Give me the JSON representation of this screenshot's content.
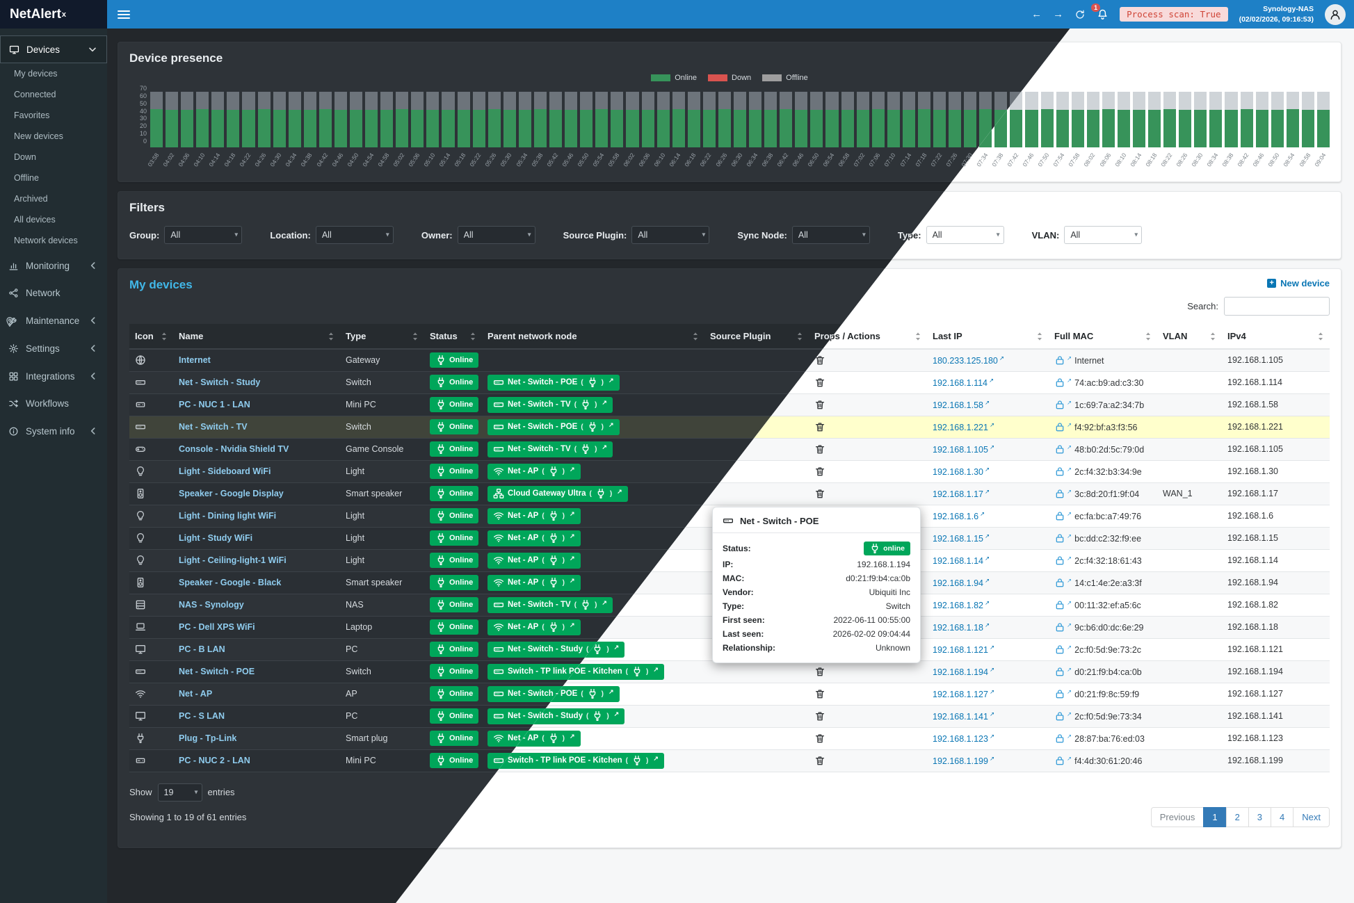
{
  "brand": {
    "name": "NetAlert",
    "sup": "x"
  },
  "topbar": {
    "notification_count": "1",
    "process_scan": "Process scan: True",
    "nas_name": "Synology-NAS",
    "nas_time": "(02/02/2026, 09:16:53)"
  },
  "colors": {
    "header_blue": "#1e80c6",
    "badge_green": "#00a65a",
    "alert_red": "#d9534f",
    "highlight_yellow": "#ffffcc"
  },
  "sidebar": {
    "sections": [
      {
        "label": "Devices",
        "icon": "desktop",
        "chevron": "down",
        "active": true
      },
      {
        "label": "Monitoring",
        "icon": "chart",
        "chevron": "left",
        "active": false
      },
      {
        "label": "Network",
        "icon": "share",
        "chevron": null,
        "active": false
      },
      {
        "label": "Maintenance",
        "icon": "wrench",
        "chevron": "left",
        "active": false
      },
      {
        "label": "Settings",
        "icon": "gear",
        "chevron": "left",
        "active": false
      },
      {
        "label": "Integrations",
        "icon": "grid",
        "chevron": "left",
        "active": false
      },
      {
        "label": "Workflows",
        "icon": "shuffle",
        "chevron": null,
        "active": false
      },
      {
        "label": "System info",
        "icon": "info",
        "chevron": "left",
        "active": false
      }
    ],
    "devices_submenu": [
      "My devices",
      "Connected",
      "Favorites",
      "New devices",
      "Down",
      "Offline",
      "Archived",
      "All devices",
      "Network devices"
    ]
  },
  "chart_data": {
    "type": "bar",
    "stacked": true,
    "title": "Device presence",
    "legend": [
      {
        "label": "Online",
        "color": "#37935a"
      },
      {
        "label": "Down",
        "color": "#d9534f"
      },
      {
        "label": "Offline",
        "color": "#9e9e9e"
      }
    ],
    "ylim": [
      0,
      70
    ],
    "yticks": [
      70,
      60,
      50,
      40,
      30,
      20,
      10,
      0
    ],
    "x": [
      "03:58",
      "04:02",
      "04:06",
      "04:10",
      "04:14",
      "04:18",
      "04:22",
      "04:26",
      "04:30",
      "04:34",
      "04:38",
      "04:42",
      "04:46",
      "04:50",
      "04:54",
      "04:58",
      "05:02",
      "05:06",
      "05:10",
      "05:14",
      "05:18",
      "05:22",
      "05:26",
      "05:30",
      "05:34",
      "05:38",
      "05:42",
      "05:46",
      "05:50",
      "05:54",
      "05:58",
      "06:02",
      "06:06",
      "06:10",
      "06:14",
      "06:18",
      "06:22",
      "06:26",
      "06:30",
      "06:34",
      "06:38",
      "06:42",
      "06:46",
      "06:50",
      "06:54",
      "06:58",
      "07:02",
      "07:06",
      "07:10",
      "07:14",
      "07:18",
      "07:22",
      "07:26",
      "07:30",
      "07:34",
      "07:38",
      "07:42",
      "07:46",
      "07:50",
      "07:54",
      "07:58",
      "08:02",
      "08:06",
      "08:10",
      "08:14",
      "08:18",
      "08:22",
      "08:26",
      "08:30",
      "08:34",
      "08:38",
      "08:42",
      "08:46",
      "08:50",
      "08:54",
      "08:58",
      "09:04"
    ],
    "series": [
      {
        "name": "Online",
        "color": "#37935a",
        "values": [
          45,
          44,
          44,
          45,
          44,
          44,
          44,
          45,
          44,
          44,
          44,
          45,
          44,
          44,
          44,
          44,
          45,
          44,
          44,
          44,
          44,
          44,
          45,
          44,
          44,
          45,
          44,
          44,
          44,
          45,
          44,
          44,
          44,
          44,
          45,
          44,
          44,
          45,
          44,
          44,
          44,
          45,
          44,
          44,
          44,
          44,
          44,
          45,
          44,
          44,
          45,
          44,
          44,
          44,
          45,
          44,
          44,
          44,
          45,
          44,
          44,
          44,
          45,
          44,
          44,
          44,
          45,
          44,
          44,
          44,
          44,
          45,
          44,
          44,
          45,
          44,
          44
        ]
      },
      {
        "name": "Down",
        "color": "#d9534f",
        "values": [
          0,
          0,
          0,
          0,
          0,
          0,
          0,
          0,
          0,
          0,
          0,
          0,
          0,
          0,
          0,
          0,
          0,
          0,
          0,
          0,
          0,
          0,
          0,
          0,
          0,
          0,
          0,
          0,
          0,
          0,
          0,
          0,
          0,
          0,
          0,
          0,
          0,
          0,
          0,
          0,
          0,
          0,
          0,
          0,
          0,
          0,
          0,
          0,
          0,
          0,
          0,
          0,
          0,
          0,
          0,
          0,
          0,
          0,
          0,
          0,
          0,
          0,
          0,
          0,
          0,
          0,
          0,
          0,
          0,
          0,
          0,
          0,
          0,
          0,
          0,
          0,
          0
        ]
      },
      {
        "name": "Offline",
        "color": "#9e9e9e",
        "values": [
          20,
          21,
          21,
          20,
          21,
          21,
          21,
          20,
          21,
          21,
          21,
          20,
          21,
          21,
          21,
          21,
          20,
          21,
          21,
          21,
          21,
          21,
          20,
          21,
          21,
          20,
          21,
          21,
          21,
          20,
          21,
          21,
          21,
          21,
          20,
          21,
          21,
          20,
          21,
          21,
          21,
          20,
          21,
          21,
          21,
          21,
          21,
          20,
          21,
          21,
          20,
          21,
          21,
          21,
          20,
          21,
          21,
          21,
          20,
          21,
          21,
          21,
          20,
          21,
          21,
          21,
          20,
          21,
          21,
          21,
          21,
          20,
          21,
          21,
          20,
          21,
          21
        ]
      }
    ]
  },
  "filters": {
    "title": "Filters",
    "items": [
      {
        "label": "Group:",
        "value": "All"
      },
      {
        "label": "Location:",
        "value": "All"
      },
      {
        "label": "Owner:",
        "value": "All"
      },
      {
        "label": "Source Plugin:",
        "value": "All"
      },
      {
        "label": "Sync Node:",
        "value": "All"
      },
      {
        "label": "Type:",
        "value": "All"
      },
      {
        "label": "VLAN:",
        "value": "All"
      }
    ]
  },
  "devices": {
    "title": "My devices",
    "new_device_label": "New device",
    "search_label": "Search:",
    "search_value": "",
    "show_label": "Show",
    "show_value": "19",
    "entries_label": "entries",
    "info": "Showing 1 to 19 of 61 entries",
    "columns": [
      "Icon",
      "Name",
      "Type",
      "Status",
      "Parent network node",
      "Source Plugin",
      "Props / Actions",
      "Last IP",
      "Full MAC",
      "V­LAN",
      "IPv4"
    ],
    "rows": [
      {
        "icon": "globe",
        "name": "Internet",
        "type": "Gateway",
        "status": "Online",
        "parent": null,
        "plugin": "",
        "last_ip": "180.233.125.180",
        "mac": "Internet",
        "vlan": "",
        "ipv4": "192.168.1.105",
        "highlight": false
      },
      {
        "icon": "switch",
        "name": "Net - Switch - Study",
        "type": "Switch",
        "status": "Online",
        "parent": {
          "icon": "switch",
          "label": "Net - Switch - POE"
        },
        "plugin": "",
        "last_ip": "192.168.1.114",
        "mac": "74:ac:b9:ad:c3:30",
        "vlan": "",
        "ipv4": "192.168.1.114",
        "highlight": false
      },
      {
        "icon": "minipc",
        "name": "PC - NUC 1 - LAN",
        "type": "Mini PC",
        "status": "Online",
        "parent": {
          "icon": "switch",
          "label": "Net - Switch - TV"
        },
        "plugin": "",
        "last_ip": "192.168.1.58",
        "mac": "1c:69:7a:a2:34:7b",
        "vlan": "",
        "ipv4": "192.168.1.58",
        "highlight": false
      },
      {
        "icon": "switch",
        "name": "Net - Switch - TV",
        "type": "Switch",
        "status": "Online",
        "parent": {
          "icon": "switch",
          "label": "Net - Switch - POE"
        },
        "plugin": "",
        "last_ip": "192.168.1.221",
        "mac": "f4:92:bf:a3:f3:56",
        "vlan": "",
        "ipv4": "192.168.1.221",
        "highlight": true
      },
      {
        "icon": "gamepad",
        "name": "Console - Nvidia Shield TV",
        "type": "Game Console",
        "status": "Online",
        "parent": {
          "icon": "switch",
          "label": "Net - Switch - TV"
        },
        "plugin": "",
        "last_ip": "192.168.1.105",
        "mac": "48:b0:2d:5c:79:0d",
        "vlan": "",
        "ipv4": "192.168.1.105",
        "highlight": false
      },
      {
        "icon": "bulb",
        "name": "Light - Sideboard WiFi",
        "type": "Light",
        "status": "Online",
        "parent": {
          "icon": "wifi",
          "label": "Net - AP"
        },
        "plugin": "",
        "last_ip": "192.168.1.30",
        "mac": "2c:f4:32:b3:34:9e",
        "vlan": "",
        "ipv4": "192.168.1.30",
        "highlight": false
      },
      {
        "icon": "speaker",
        "name": "Speaker - Google Display",
        "type": "Smart speaker",
        "status": "Online",
        "parent": {
          "icon": "sitemap",
          "label": "Cloud Gateway Ultra"
        },
        "plugin": "",
        "last_ip": "192.168.1.17",
        "mac": "3c:8d:20:f1:9f:04",
        "vlan": "WAN_1",
        "ipv4": "192.168.1.17",
        "highlight": false
      },
      {
        "icon": "bulb",
        "name": "Light - Dining light WiFi",
        "type": "Light",
        "status": "Online",
        "parent": {
          "icon": "wifi",
          "label": "Net - AP"
        },
        "plugin": "",
        "last_ip": "192.168.1.6",
        "mac": "ec:fa:bc:a7:49:76",
        "vlan": "",
        "ipv4": "192.168.1.6",
        "highlight": false
      },
      {
        "icon": "bulb",
        "name": "Light - Study WiFi",
        "type": "Light",
        "status": "Online",
        "parent": {
          "icon": "wifi",
          "label": "Net - AP"
        },
        "plugin": "",
        "last_ip": "192.168.1.15",
        "mac": "bc:dd:c2:32:f9:ee",
        "vlan": "",
        "ipv4": "192.168.1.15",
        "highlight": false
      },
      {
        "icon": "bulb",
        "name": "Light - Ceiling-light-1 WiFi",
        "type": "Light",
        "status": "Online",
        "parent": {
          "icon": "wifi",
          "label": "Net - AP"
        },
        "plugin": "",
        "last_ip": "192.168.1.14",
        "mac": "2c:f4:32:18:61:43",
        "vlan": "",
        "ipv4": "192.168.1.14",
        "highlight": false
      },
      {
        "icon": "speaker",
        "name": "Speaker - Google - Black",
        "type": "Smart speaker",
        "status": "Online",
        "parent": {
          "icon": "wifi",
          "label": "Net - AP"
        },
        "plugin": "",
        "last_ip": "192.168.1.94",
        "mac": "14:c1:4e:2e:a3:3f",
        "vlan": "",
        "ipv4": "192.168.1.94",
        "highlight": false
      },
      {
        "icon": "nas",
        "name": "NAS - Synology",
        "type": "NAS",
        "status": "Online",
        "parent": {
          "icon": "switch",
          "label": "Net - Switch - TV"
        },
        "plugin": "",
        "last_ip": "192.168.1.82",
        "mac": "00:11:32:ef:a5:6c",
        "vlan": "",
        "ipv4": "192.168.1.82",
        "highlight": false
      },
      {
        "icon": "laptop",
        "name": "PC - Dell XPS WiFi",
        "type": "Laptop",
        "status": "Online",
        "parent": {
          "icon": "wifi",
          "label": "Net - AP"
        },
        "plugin": "",
        "last_ip": "192.168.1.18",
        "mac": "9c:b6:d0:dc:6e:29",
        "vlan": "",
        "ipv4": "192.168.1.18",
        "highlight": false
      },
      {
        "icon": "desktop",
        "name": "PC - B LAN",
        "type": "PC",
        "status": "Online",
        "parent": {
          "icon": "switch",
          "label": "Net - Switch - Study"
        },
        "plugin": "",
        "last_ip": "192.168.1.121",
        "mac": "2c:f0:5d:9e:73:2c",
        "vlan": "",
        "ipv4": "192.168.1.121",
        "highlight": false
      },
      {
        "icon": "switch",
        "name": "Net - Switch - POE",
        "type": "Switch",
        "status": "Online",
        "parent": {
          "icon": "switch",
          "label": "Switch - TP link POE - Kitchen"
        },
        "plugin": "",
        "last_ip": "192.168.1.194",
        "mac": "d0:21:f9:b4:ca:0b",
        "vlan": "",
        "ipv4": "192.168.1.194",
        "highlight": false
      },
      {
        "icon": "wifi",
        "name": "Net - AP",
        "type": "AP",
        "status": "Online",
        "parent": {
          "icon": "switch",
          "label": "Net - Switch - POE"
        },
        "plugin": "",
        "last_ip": "192.168.1.127",
        "mac": "d0:21:f9:8c:59:f9",
        "vlan": "",
        "ipv4": "192.168.1.127",
        "highlight": false
      },
      {
        "icon": "desktop",
        "name": "PC - S LAN",
        "type": "PC",
        "status": "Online",
        "parent": {
          "icon": "switch",
          "label": "Net - Switch - Study"
        },
        "plugin": "",
        "last_ip": "192.168.1.141",
        "mac": "2c:f0:5d:9e:73:34",
        "vlan": "",
        "ipv4": "192.168.1.141",
        "highlight": false
      },
      {
        "icon": "plug",
        "name": "Plug - Tp-Link",
        "type": "Smart plug",
        "status": "Online",
        "parent": {
          "icon": "wifi",
          "label": "Net - AP"
        },
        "plugin": "",
        "last_ip": "192.168.1.123",
        "mac": "28:87:ba:76:ed:03",
        "vlan": "",
        "ipv4": "192.168.1.123",
        "highlight": false
      },
      {
        "icon": "minipc",
        "name": "PC - NUC 2 - LAN",
        "type": "Mini PC",
        "status": "Online",
        "parent": {
          "icon": "switch",
          "label": "Switch - TP link POE - Kitchen"
        },
        "plugin": "",
        "last_ip": "192.168.1.199",
        "mac": "f4:4d:30:61:20:46",
        "vlan": "",
        "ipv4": "192.168.1.199",
        "highlight": false
      }
    ],
    "pagination": {
      "prev": "Previous",
      "pages": [
        "1",
        "2",
        "3",
        "4"
      ],
      "next": "Next",
      "active": "1"
    }
  },
  "popover": {
    "title": "Net - Switch - POE",
    "icon": "switch",
    "status_label": "Status:",
    "status_value": "online",
    "rows": [
      {
        "label": "IP:",
        "value": "192.168.1.194"
      },
      {
        "label": "MAC:",
        "value": "d0:21:f9:b4:ca:0b"
      },
      {
        "label": "Vendor:",
        "value": "Ubiquiti Inc"
      },
      {
        "label": "Type:",
        "value": "Switch"
      },
      {
        "label": "First seen:",
        "value": "2022-06-11 00:55:00"
      },
      {
        "label": "Last seen:",
        "value": "2026-02-02 09:04:44"
      },
      {
        "label": "Relationship:",
        "value": "Unknown"
      }
    ]
  }
}
